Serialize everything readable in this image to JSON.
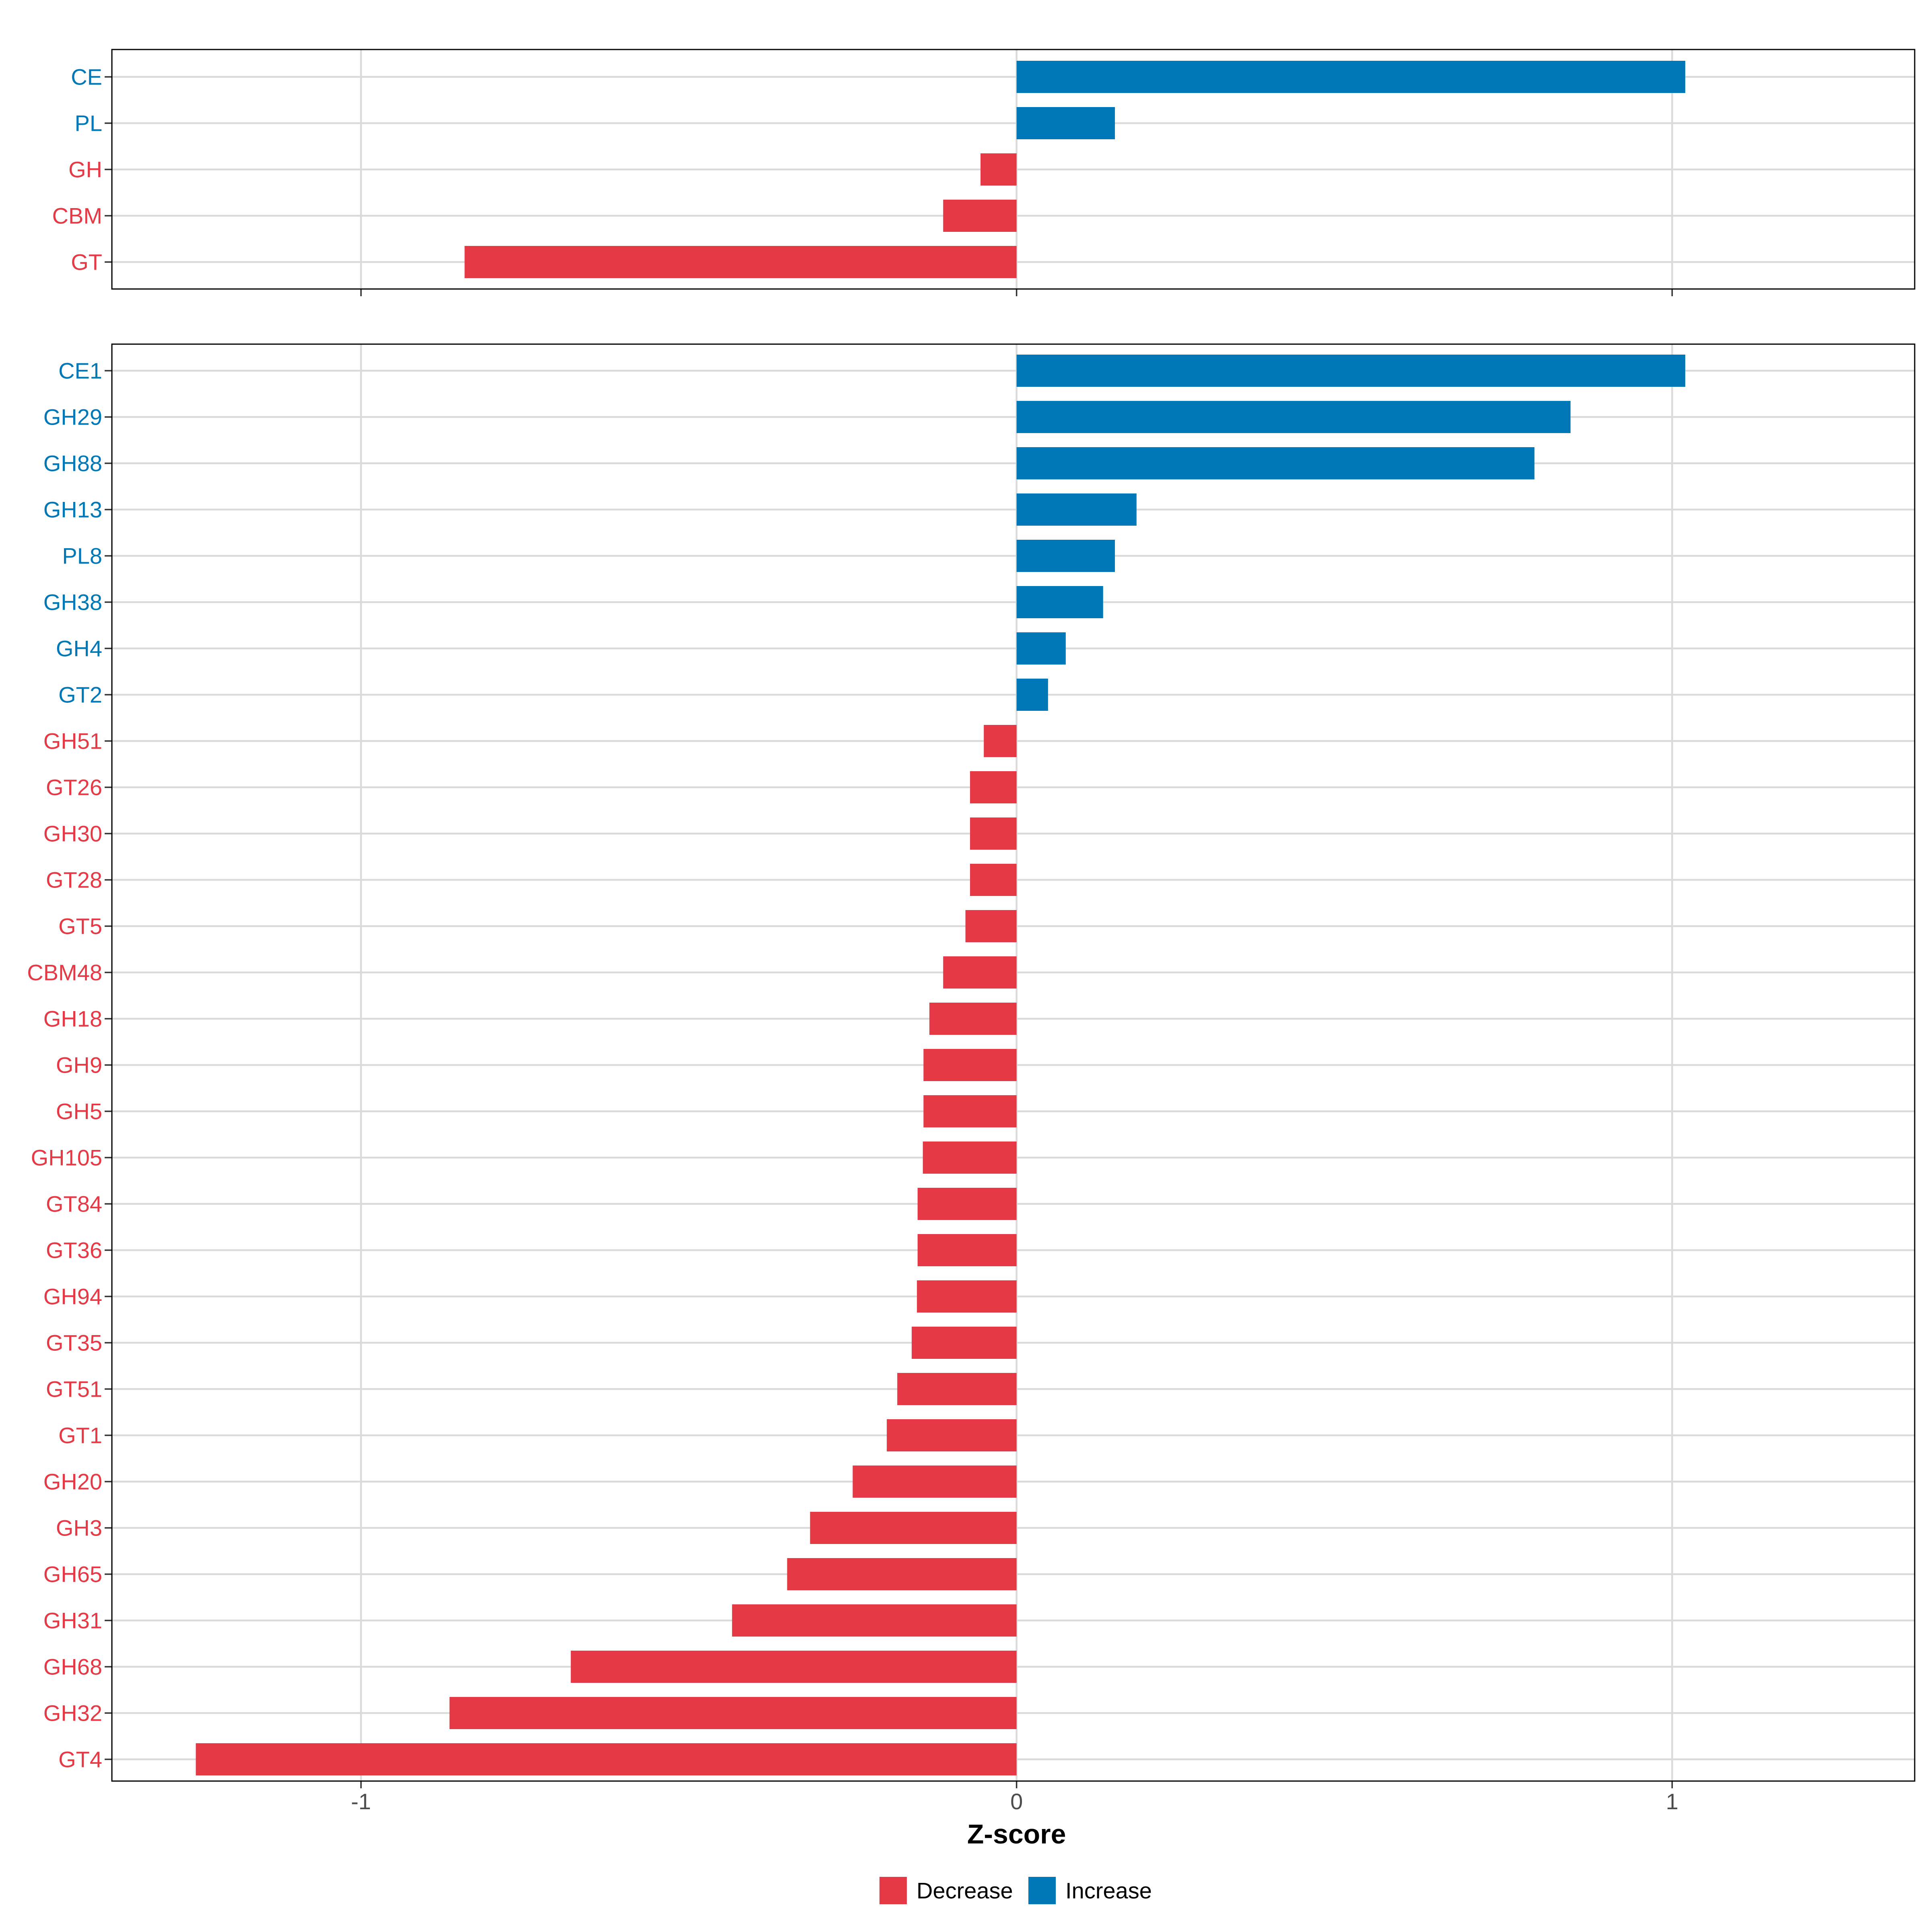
{
  "colors": {
    "decrease": "#E63946",
    "increase": "#0077B6"
  },
  "chart_data": {
    "type": "bar",
    "orientation": "horizontal",
    "xlabel": "Z-score",
    "xlim": [
      -1.38,
      1.37
    ],
    "xticks": [
      {
        "value": -1,
        "label": "-1"
      },
      {
        "value": 0,
        "label": "0"
      },
      {
        "value": 1,
        "label": "1"
      }
    ],
    "legend": [
      {
        "key": "decrease",
        "label": "Decrease"
      },
      {
        "key": "increase",
        "label": "Increase"
      }
    ],
    "panels": [
      {
        "name": "class-panel",
        "categories": [
          "CE",
          "PL",
          "GH",
          "CBM",
          "GT"
        ],
        "values": [
          1.02,
          0.15,
          -0.055,
          -0.112,
          -0.842
        ]
      },
      {
        "name": "family-panel",
        "categories": [
          "CE1",
          "GH29",
          "GH88",
          "GH13",
          "PL8",
          "GH38",
          "GH4",
          "GT2",
          "GH51",
          "GT26",
          "GH30",
          "GT28",
          "GT5",
          "CBM48",
          "GH18",
          "GH9",
          "GH5",
          "GH105",
          "GT84",
          "GT36",
          "GH94",
          "GT35",
          "GT51",
          "GT1",
          "GH20",
          "GH3",
          "GH65",
          "GH31",
          "GH68",
          "GH32",
          "GT4"
        ],
        "values": [
          1.02,
          0.845,
          0.79,
          0.183,
          0.15,
          0.132,
          0.075,
          0.048,
          -0.05,
          -0.071,
          -0.071,
          -0.071,
          -0.078,
          -0.112,
          -0.133,
          -0.142,
          -0.142,
          -0.143,
          -0.151,
          -0.151,
          -0.152,
          -0.16,
          -0.182,
          -0.198,
          -0.25,
          -0.315,
          -0.35,
          -0.434,
          -0.68,
          -0.865,
          -1.252
        ]
      }
    ]
  }
}
